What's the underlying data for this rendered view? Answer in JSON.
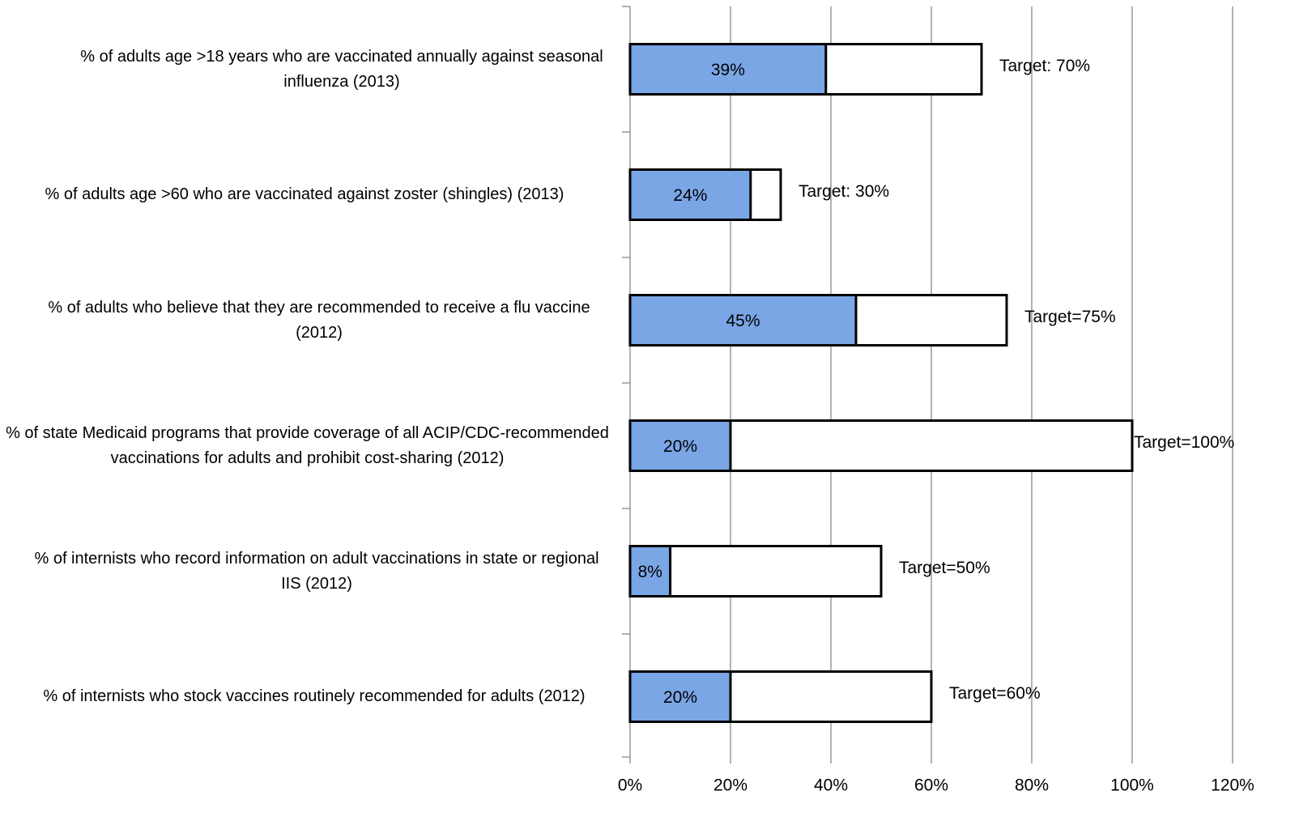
{
  "chart_data": {
    "type": "bar",
    "categories": [
      "% of adults age >18 years who are vaccinated annually against seasonal influenza (2013)",
      "% of adults age >60 who are vaccinated against zoster (shingles) (2013)",
      "% of adults who believe that they are recommended to receive a flu vaccine (2012)",
      "% of state Medicaid programs that provide coverage of all ACIP/CDC-recommended vaccinations for adults and prohibit cost-sharing (2012)",
      "% of internists who record information on adult vaccinations in state or regional IIS (2012)",
      "% of internists who stock vaccines routinely recommended for adults (2012)"
    ],
    "series": [
      {
        "color": "#ffffff",
        "values": [
          70,
          30,
          75,
          100,
          50,
          60
        ],
        "value_labels": [
          "Target: 70%",
          "Target: 30%",
          "Target=75%",
          "Target=100%",
          "Target=50%",
          "Target=60%"
        ]
      },
      {
        "color": "#7aa6e6",
        "values": [
          39,
          24,
          45,
          20,
          8,
          20
        ],
        "value_labels": [
          "39%",
          "24%",
          "45%",
          "20%",
          "8%",
          "20%"
        ]
      }
    ],
    "xlim": [
      0,
      120
    ],
    "xticks": [
      {
        "value": 0,
        "label": "0%"
      },
      {
        "value": 20,
        "label": "20%"
      },
      {
        "value": 40,
        "label": "40%"
      },
      {
        "value": 60,
        "label": "60%"
      },
      {
        "value": 80,
        "label": "80%"
      },
      {
        "value": 100,
        "label": "100%"
      },
      {
        "value": 120,
        "label": "120%"
      }
    ],
    "grid": true
  }
}
